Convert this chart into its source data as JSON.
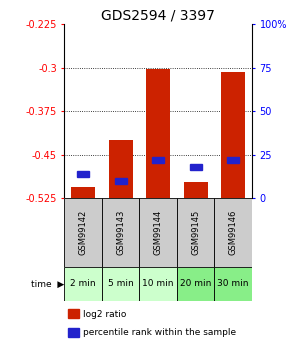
{
  "title": "GDS2594 / 3397",
  "samples": [
    "GSM99142",
    "GSM99143",
    "GSM99144",
    "GSM99145",
    "GSM99146"
  ],
  "time_labels": [
    "2 min",
    "5 min",
    "10 min",
    "20 min",
    "30 min"
  ],
  "log2_values": [
    -0.505,
    -0.425,
    -0.302,
    -0.497,
    -0.308
  ],
  "percentile_values": [
    14,
    10,
    22,
    18,
    22
  ],
  "baseline": -0.525,
  "ylim_left": [
    -0.525,
    -0.225
  ],
  "ylim_right": [
    0,
    100
  ],
  "yticks_left": [
    -0.525,
    -0.45,
    -0.375,
    -0.3,
    -0.225
  ],
  "ytick_labels_left": [
    "-0.525",
    "-0.45",
    "-0.375",
    "-0.3",
    "-0.225"
  ],
  "yticks_right": [
    0,
    25,
    50,
    75,
    100
  ],
  "ytick_labels_right": [
    "0",
    "25",
    "50",
    "75",
    "100%"
  ],
  "grid_values": [
    -0.3,
    -0.375,
    -0.45
  ],
  "bar_color": "#cc2200",
  "dot_color": "#2222cc",
  "sample_bg": "#cccccc",
  "time_bg_light": "#ccffcc",
  "time_bg_dark": "#88ee88",
  "title_fontsize": 10,
  "axis_fontsize": 7,
  "tick_fontsize": 7,
  "label_fontsize": 6.5,
  "sample_fontsize": 6,
  "time_fontsize": 6.5
}
